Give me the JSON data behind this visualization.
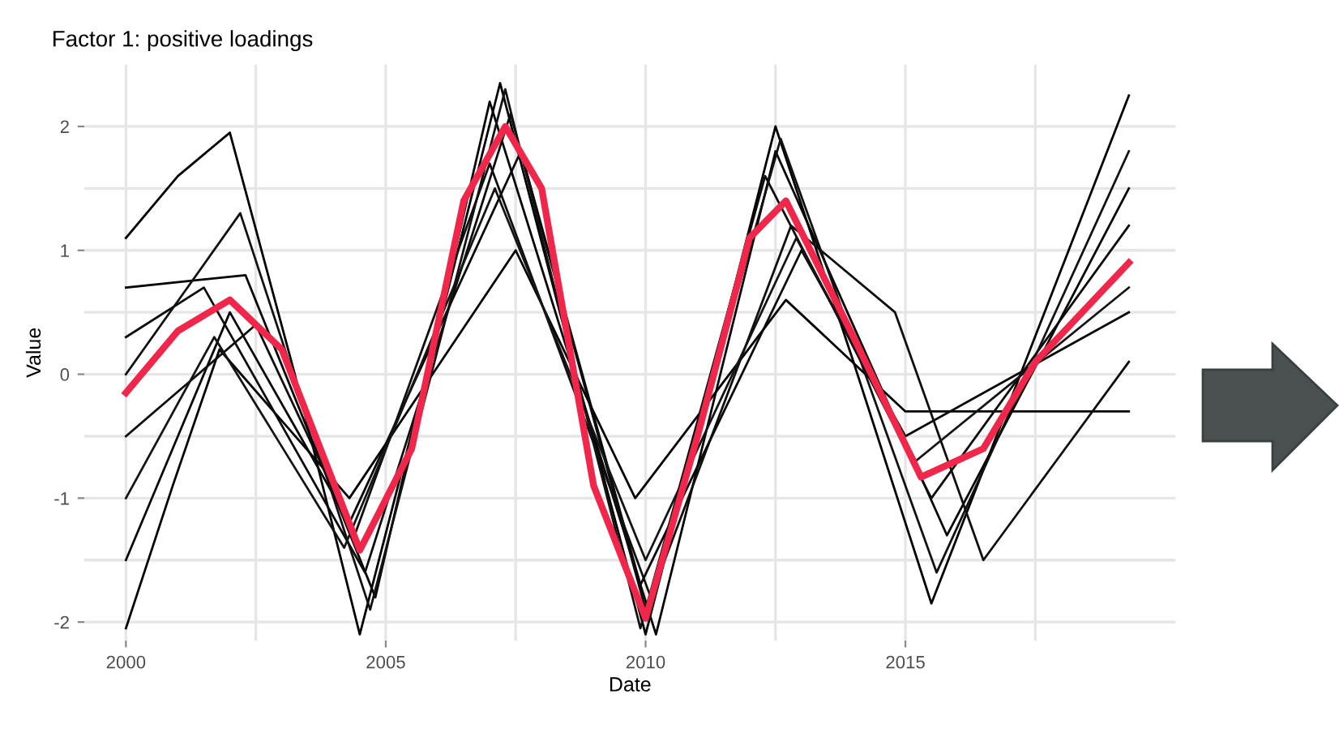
{
  "chart_data": {
    "type": "line",
    "title": "Factor 1: positive loadings",
    "xlabel": "Date",
    "ylabel": "Value",
    "xlim": [
      1999.2,
      2020.2
    ],
    "ylim": [
      -2.15,
      2.5
    ],
    "xticks": [
      2000,
      {
        "value": 2002.5,
        "label": null
      },
      2005,
      {
        "value": 2007.5,
        "label": null
      },
      2010,
      {
        "value": 2012.5,
        "label": null
      },
      2015,
      {
        "value": 2017.5,
        "label": null
      }
    ],
    "yticks": [
      -2,
      {
        "value": -1.5,
        "label": null
      },
      -1,
      {
        "value": -0.5,
        "label": null
      },
      0,
      {
        "value": 0.5,
        "label": null
      },
      1,
      {
        "value": 1.5,
        "label": null
      },
      2
    ],
    "grid": true,
    "marker": "none",
    "line_style": "solid",
    "series": [
      {
        "color": "#000000",
        "x": [
          2000,
          2001,
          2002,
          2003.25,
          2004.5,
          2005.85,
          2007.2,
          2008.6,
          2010,
          2011.25,
          2012.5,
          2014,
          2015.5,
          2017.4,
          2019.3
        ],
        "values": [
          1.1,
          1.6,
          1.95,
          0.0,
          -2.1,
          0.1,
          2.35,
          0.1,
          -2.1,
          -0.05,
          2.0,
          0.1,
          -1.85,
          0.2,
          2.25
        ]
      },
      {
        "color": "#030303",
        "x": [
          2000,
          2000.9,
          2001.8,
          2003.05,
          2004.3,
          2005.9,
          2007.5,
          2008.65,
          2009.8,
          2011.25,
          2012.7,
          2013.85,
          2015,
          2019.3
        ],
        "values": [
          -2.05,
          -0.9,
          0.2,
          -0.4,
          -1.0,
          0.0,
          1.0,
          0.0,
          -1.0,
          -0.2,
          0.6,
          0.15,
          -0.3,
          -0.3
        ]
      },
      {
        "color": "#060606",
        "x": [
          2000,
          2002.3,
          2003.55,
          2004.8,
          2005.9,
          2007,
          2008.6,
          2010.2,
          2011.35,
          2012.5,
          2014.15,
          2015.8,
          2017.55,
          2019.3
        ],
        "values": [
          0.7,
          0.8,
          -0.5,
          -1.8,
          0.2,
          2.2,
          0.05,
          -2.1,
          -0.15,
          1.8,
          0.25,
          -1.3,
          0.1,
          1.5
        ]
      },
      {
        "color": "#090909",
        "x": [
          2000,
          2001,
          2002,
          2003.15,
          2004.3,
          2005.95,
          2007.6,
          2008.75,
          2009.9,
          2011.45,
          2013,
          2014,
          2015,
          2017.15,
          2019.3
        ],
        "values": [
          -1.5,
          -0.5,
          0.5,
          -0.35,
          -1.2,
          0.3,
          1.8,
          0.05,
          -1.7,
          -0.35,
          1.0,
          0.25,
          -0.5,
          0.0,
          0.5
        ]
      },
      {
        "color": "#0c0c0c",
        "x": [
          2000,
          2001.5,
          2003.05,
          2004.6,
          2006,
          2007.4,
          2008.7,
          2010,
          2011.15,
          2012.3,
          2013.9,
          2015.5,
          2017.4,
          2019.3
        ],
        "values": [
          0.3,
          0.7,
          -0.45,
          -1.6,
          0.25,
          2.1,
          0.1,
          -1.9,
          -0.15,
          1.6,
          0.3,
          -1.0,
          0.1,
          1.2
        ]
      },
      {
        "color": "#0f0f0f",
        "x": [
          2000,
          2001.25,
          2002.5,
          2003.45,
          2004.4,
          2005.7,
          2007,
          2008.55,
          2010.1,
          2011.45,
          2012.8,
          2014.8,
          2015.65,
          2016.5,
          2017.9,
          2019.3
        ],
        "values": [
          -0.5,
          -0.05,
          0.4,
          -0.45,
          -1.3,
          0.2,
          1.7,
          -0.05,
          -1.8,
          -0.3,
          1.2,
          0.5,
          -0.5,
          -1.5,
          -0.7,
          0.1
        ]
      },
      {
        "color": "#121212",
        "x": [
          2000,
          2001.1,
          2002.2,
          2003.45,
          2004.7,
          2006,
          2007.3,
          2008.6,
          2009.9,
          2011.25,
          2012.6,
          2014.1,
          2015.6,
          2017.45,
          2019.3
        ],
        "values": [
          0.0,
          0.65,
          1.3,
          -0.3,
          -1.9,
          0.2,
          2.3,
          0.1,
          -2.05,
          -0.1,
          1.9,
          0.15,
          -1.6,
          0.1,
          1.8
        ]
      },
      {
        "color": "#151515",
        "x": [
          2000,
          2000.85,
          2001.7,
          2002.95,
          2004.2,
          2005.65,
          2007.1,
          2008.55,
          2010,
          2011.45,
          2012.9,
          2014.05,
          2015.2,
          2017.25,
          2019.3
        ],
        "values": [
          -1.0,
          -0.35,
          0.3,
          -0.55,
          -1.4,
          0.05,
          1.5,
          0.0,
          -1.5,
          -0.2,
          1.1,
          0.2,
          -0.7,
          0.0,
          0.7
        ]
      },
      {
        "color": "#f0274a",
        "x": [
          2000,
          2001,
          2002,
          2003,
          2004.5,
          2005.5,
          2006.5,
          2007.3,
          2008,
          2009,
          2010,
          2011,
          2012,
          2012.7,
          2014,
          2015.3,
          2016.5,
          2017.5,
          2019.3
        ],
        "values": [
          -0.15,
          0.35,
          0.6,
          0.2,
          -1.42,
          -0.6,
          1.4,
          2.0,
          1.5,
          -0.9,
          -1.97,
          -0.5,
          1.1,
          1.4,
          0.3,
          -0.83,
          -0.6,
          0.1,
          0.9
        ]
      }
    ]
  }
}
